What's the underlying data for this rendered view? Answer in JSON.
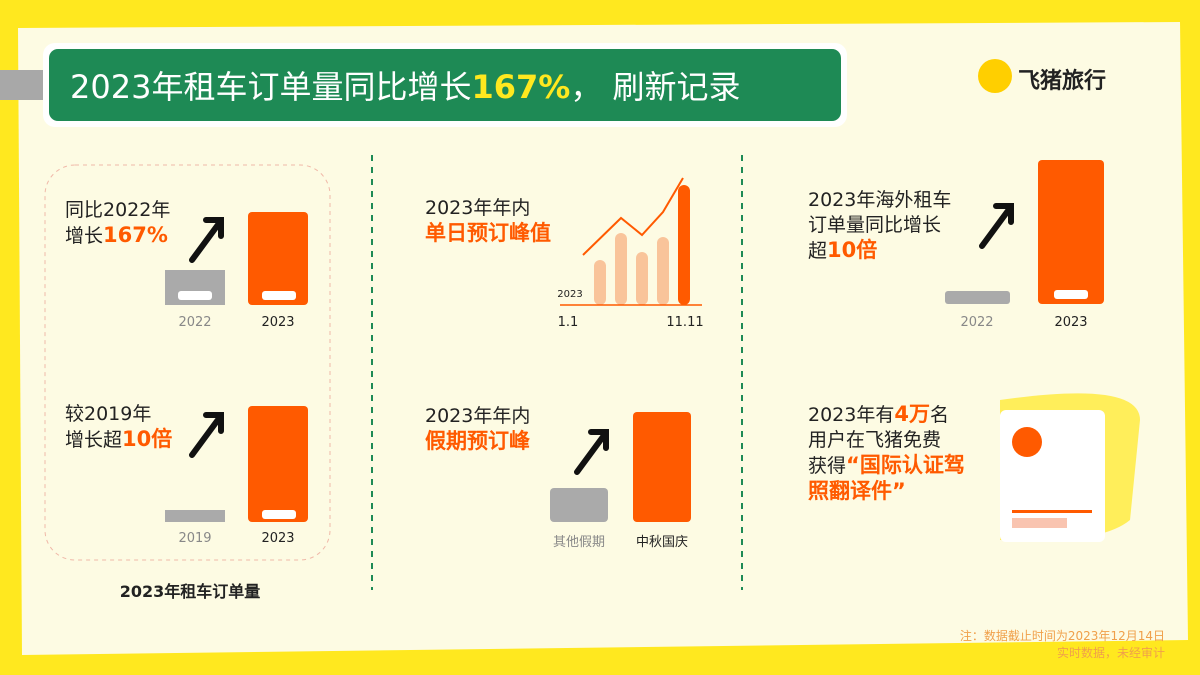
{
  "header": {
    "title": [
      "2023年租车订单量同比增长",
      "167%",
      "， 刷新记录"
    ],
    "brand": "飞猪旅行"
  },
  "panels": [
    {
      "lines": [
        [
          "同比2022年"
        ],
        [
          "增长",
          "167%"
        ]
      ],
      "labels": [
        "2022",
        "2023"
      ]
    },
    {
      "lines": [
        [
          "较2019年"
        ],
        [
          "增长超",
          "10倍"
        ]
      ],
      "labels": [
        "2019",
        "2023"
      ],
      "caption": "2023年租车订单量"
    },
    {
      "lines": [
        [
          "2023年年内"
        ],
        [
          "",
          "单日预订峰值"
        ]
      ],
      "year": "2023",
      "labels": [
        "1.1",
        "11.11"
      ]
    },
    {
      "lines": [
        [
          "2023年年内"
        ],
        [
          "",
          "假期预订峰"
        ]
      ],
      "labels": [
        "其他假期",
        "中秋国庆"
      ]
    },
    {
      "lines": [
        [
          "2023年海外租车"
        ],
        [
          "订单量同比增长"
        ],
        [
          "超",
          "10倍"
        ]
      ],
      "labels": [
        "2022",
        "2023"
      ]
    },
    {
      "lines": [
        [
          "2023年有",
          "4万",
          "名"
        ],
        [
          "用户在飞猪免费"
        ],
        [
          "获得",
          "“国际认证驾"
        ],
        [
          "",
          "照翻译件”"
        ]
      ]
    }
  ],
  "footnote": [
    "注：数据截止时间为2023年12月14日",
    "实时数据，未经审计"
  ]
}
